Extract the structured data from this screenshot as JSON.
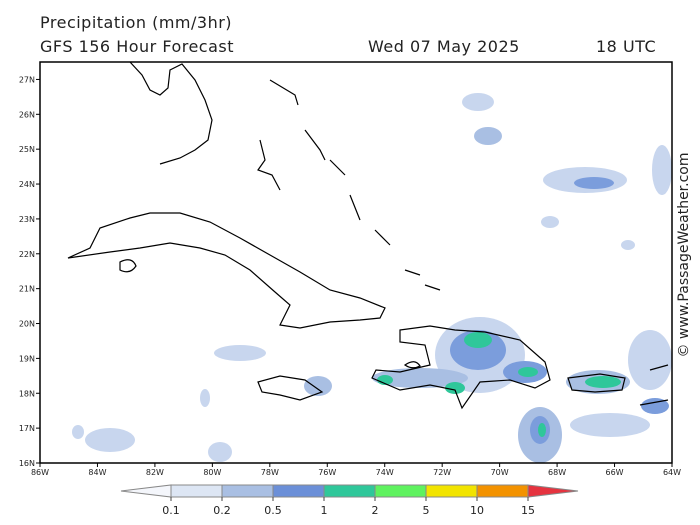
{
  "header": {
    "title": "Precipitation (mm/3hr)",
    "subtitle": "GFS 156 Hour Forecast",
    "date": "Wed 07 May 2025",
    "time": "18 UTC"
  },
  "map": {
    "xlim": [
      -86,
      -64
    ],
    "ylim": [
      16,
      27.5
    ],
    "yticks": [
      {
        "value": 16,
        "label": "16N"
      },
      {
        "value": 17,
        "label": "17N"
      },
      {
        "value": 18,
        "label": "18N"
      },
      {
        "value": 19,
        "label": "19N"
      },
      {
        "value": 20,
        "label": "20N"
      },
      {
        "value": 21,
        "label": "21N"
      },
      {
        "value": 22,
        "label": "22N"
      },
      {
        "value": 23,
        "label": "23N"
      },
      {
        "value": 24,
        "label": "24N"
      },
      {
        "value": 25,
        "label": "25N"
      },
      {
        "value": 26,
        "label": "26N"
      },
      {
        "value": 27,
        "label": "27N"
      }
    ],
    "xticks": [
      {
        "value": -86,
        "label": "86W"
      },
      {
        "value": -84,
        "label": "84W"
      },
      {
        "value": -82,
        "label": "82W"
      },
      {
        "value": -80,
        "label": "80W"
      },
      {
        "value": -78,
        "label": "78W"
      },
      {
        "value": -76,
        "label": "76W"
      },
      {
        "value": -74,
        "label": "74W"
      },
      {
        "value": -72,
        "label": "72W"
      },
      {
        "value": -70,
        "label": "70W"
      },
      {
        "value": -68,
        "label": "68W"
      },
      {
        "value": -66,
        "label": "66W"
      },
      {
        "value": -64,
        "label": "64W"
      }
    ]
  },
  "colorbar": {
    "ticks": [
      0.1,
      0.2,
      0.5,
      1,
      2,
      5,
      10,
      15
    ],
    "colors": [
      "#f4f6fb",
      "#dde6f4",
      "#a9bfe3",
      "#6b8fd8",
      "#2fc79a",
      "#5ff25f",
      "#f2e400",
      "#f39200",
      "#e5333f"
    ]
  },
  "credit": "© www.PassageWeather.com"
}
